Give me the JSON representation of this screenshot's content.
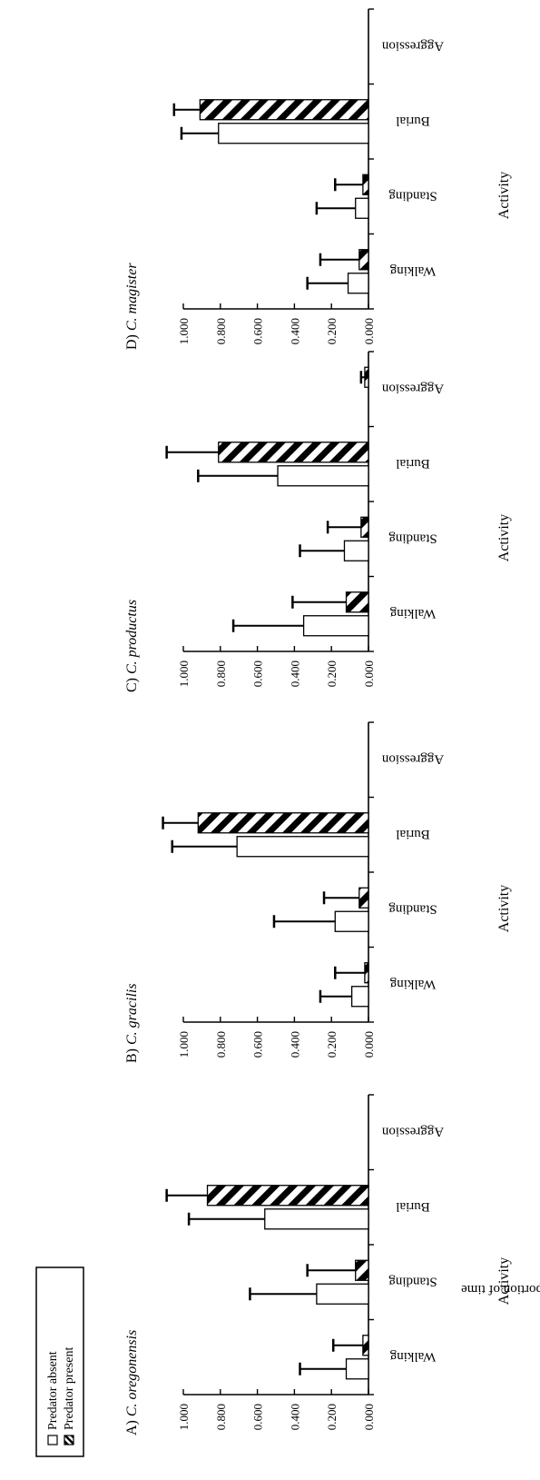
{
  "y_axis_label": "Mean proportion of time",
  "legend": {
    "absent": "Predator absent",
    "present": "Predator present"
  },
  "chart_data": [
    {
      "type": "bar",
      "panel_letter": "A)",
      "species": "C. oregonensis",
      "categories": [
        "Walking",
        "Standing",
        "Burial",
        "Aggression"
      ],
      "xlabel": "Activity",
      "ylabel": "Mean proportion of time",
      "ylim": [
        0,
        1.0
      ],
      "yticks": [
        "0.000",
        "0.200",
        "0.400",
        "0.600",
        "0.800",
        "1.000"
      ],
      "series": [
        {
          "name": "Predator absent",
          "values": [
            0.12,
            0.28,
            0.56,
            0.0
          ],
          "errors": [
            0.25,
            0.36,
            0.41,
            0.0
          ]
        },
        {
          "name": "Predator present",
          "values": [
            0.03,
            0.07,
            0.87,
            0.0
          ],
          "errors": [
            0.16,
            0.26,
            0.22,
            0.0
          ]
        }
      ]
    },
    {
      "type": "bar",
      "panel_letter": "B)",
      "species": "C. gracilis",
      "categories": [
        "Walking",
        "Standing",
        "Burial",
        "Aggression"
      ],
      "xlabel": "Activity",
      "ylabel": "Mean proportion of time",
      "ylim": [
        0,
        1.0
      ],
      "yticks": [
        "0.000",
        "0.200",
        "0.400",
        "0.600",
        "0.800",
        "1.000"
      ],
      "series": [
        {
          "name": "Predator absent",
          "values": [
            0.09,
            0.18,
            0.71,
            0.0
          ],
          "errors": [
            0.17,
            0.33,
            0.35,
            0.0
          ]
        },
        {
          "name": "Predator present",
          "values": [
            0.02,
            0.05,
            0.92,
            0.0
          ],
          "errors": [
            0.16,
            0.19,
            0.19,
            0.0
          ]
        }
      ]
    },
    {
      "type": "bar",
      "panel_letter": "C)",
      "species": "C. productus",
      "categories": [
        "Walking",
        "Standing",
        "Burial",
        "Aggression"
      ],
      "xlabel": "Activity",
      "ylabel": "Mean proportion of time",
      "ylim": [
        0,
        1.0
      ],
      "yticks": [
        "0.000",
        "0.200",
        "0.400",
        "0.600",
        "0.800",
        "1.000"
      ],
      "series": [
        {
          "name": "Predator absent",
          "values": [
            0.35,
            0.13,
            0.49,
            0.0
          ],
          "errors": [
            0.38,
            0.24,
            0.43,
            0.0
          ]
        },
        {
          "name": "Predator present",
          "values": [
            0.12,
            0.04,
            0.81,
            0.02
          ],
          "errors": [
            0.29,
            0.18,
            0.28,
            0.02
          ]
        }
      ]
    },
    {
      "type": "bar",
      "panel_letter": "D)",
      "species": "C. magister",
      "categories": [
        "Walking",
        "Standing",
        "Burial",
        "Aggression"
      ],
      "xlabel": "Activity",
      "ylabel": "Mean proportion of time",
      "ylim": [
        0,
        1.0
      ],
      "yticks": [
        "0.000",
        "0.200",
        "0.400",
        "0.600",
        "0.800",
        "1.000"
      ],
      "series": [
        {
          "name": "Predator absent",
          "values": [
            0.11,
            0.07,
            0.81,
            0.0
          ],
          "errors": [
            0.22,
            0.21,
            0.2,
            0.0
          ]
        },
        {
          "name": "Predator present",
          "values": [
            0.05,
            0.03,
            0.91,
            0.0
          ],
          "errors": [
            0.21,
            0.15,
            0.14,
            0.0
          ]
        }
      ]
    }
  ]
}
